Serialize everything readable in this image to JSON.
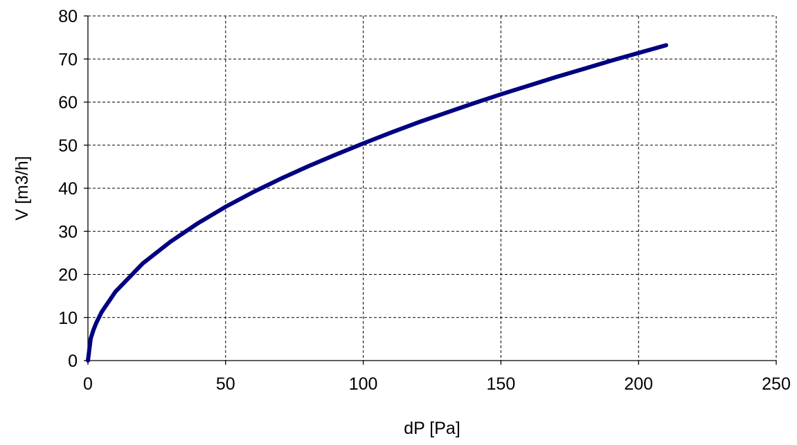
{
  "chart_data": {
    "type": "line",
    "xlabel": "dP [Pa]",
    "ylabel": "V [m3/h]",
    "xlim": [
      0,
      250
    ],
    "ylim": [
      0,
      80
    ],
    "x_ticks": [
      0,
      50,
      100,
      150,
      200,
      250
    ],
    "y_ticks": [
      0,
      10,
      20,
      30,
      40,
      50,
      60,
      70,
      80
    ],
    "x_tick_labels": [
      "0",
      "50",
      "100",
      "150",
      "200",
      "250"
    ],
    "y_tick_labels": [
      "0",
      "10",
      "20",
      "30",
      "40",
      "50",
      "60",
      "70",
      "80"
    ],
    "grid": true,
    "legend": "none",
    "series": [
      {
        "color": "#000080",
        "x": [
          0,
          1,
          2,
          3,
          5,
          10,
          20,
          30,
          40,
          50,
          60,
          70,
          80,
          90,
          100,
          110,
          120,
          130,
          140,
          150,
          160,
          170,
          180,
          190,
          200,
          210
        ],
        "y": [
          0,
          5.1,
          7.1,
          8.7,
          11.3,
          16.0,
          22.6,
          27.6,
          31.9,
          35.7,
          39.1,
          42.2,
          45.1,
          47.8,
          50.4,
          52.9,
          55.3,
          57.5,
          59.7,
          61.8,
          63.8,
          65.8,
          67.7,
          69.6,
          71.4,
          73.2
        ]
      }
    ]
  }
}
